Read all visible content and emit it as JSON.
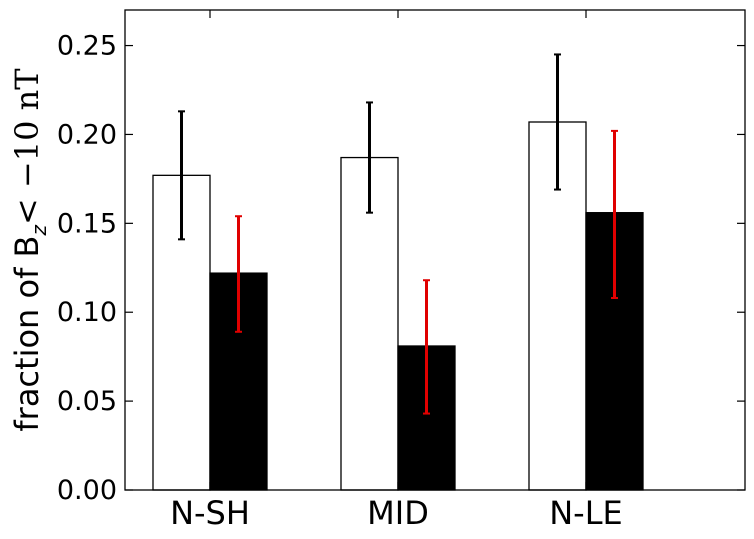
{
  "chart_data": {
    "type": "bar",
    "categories": [
      "N-SH",
      "MID",
      "N-LE"
    ],
    "ylabel": "fraction of B",
    "ylabel_sub": "z",
    "ylabel_rest": "< −10 nT",
    "ylim": [
      0,
      0.27
    ],
    "yticks": [
      "0.00",
      "0.05",
      "0.10",
      "0.15",
      "0.20",
      "0.25"
    ],
    "ytick_values": [
      0,
      0.05,
      0.1,
      0.15,
      0.2,
      0.25
    ],
    "grid": false,
    "series": [
      {
        "fill": "#ffffff",
        "error_color": "#000000",
        "values": [
          0.177,
          0.187,
          0.207
        ],
        "err_low": [
          0.141,
          0.156,
          0.169
        ],
        "err_high": [
          0.213,
          0.218,
          0.245
        ]
      },
      {
        "fill": "#000000",
        "error_color": "#e00000",
        "values": [
          0.122,
          0.081,
          0.156
        ],
        "err_low": [
          0.089,
          0.043,
          0.108
        ],
        "err_high": [
          0.154,
          0.118,
          0.202
        ]
      }
    ]
  }
}
